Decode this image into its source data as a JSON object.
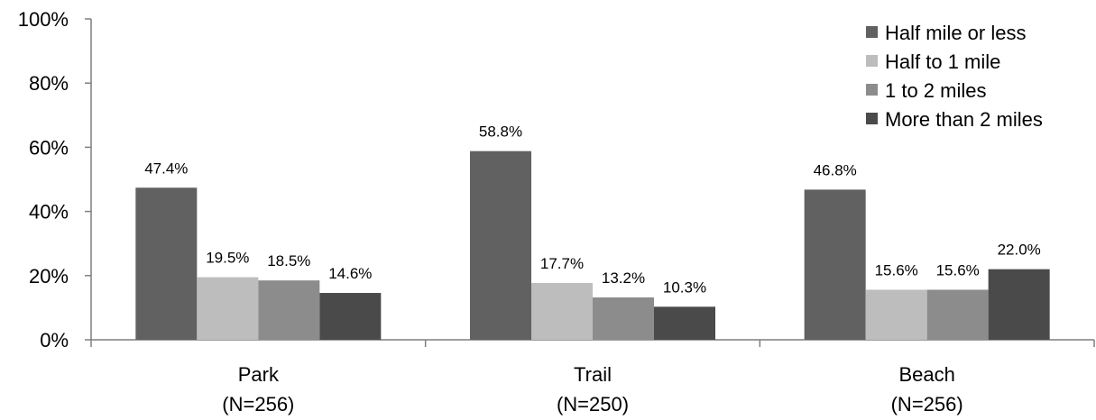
{
  "chart_data": {
    "type": "bar",
    "categories": [
      "Park\n(N=256)",
      "Trail\n(N=250)",
      "Beach\n(N=256)"
    ],
    "category_lines": [
      [
        "Park",
        "(N=256)"
      ],
      [
        "Trail",
        "(N=250)"
      ],
      [
        "Beach",
        "(N=256)"
      ]
    ],
    "series": [
      {
        "name": "Half mile or less",
        "values": [
          47.4,
          58.8,
          46.8
        ],
        "labels": [
          "47.4%",
          "58.8%",
          "46.8%"
        ],
        "color": "#616161"
      },
      {
        "name": "Half to 1 mile",
        "values": [
          19.5,
          17.7,
          15.6
        ],
        "labels": [
          "19.5%",
          "17.7%",
          "15.6%"
        ],
        "color": "#bdbdbd"
      },
      {
        "name": "1 to 2 miles",
        "values": [
          18.5,
          13.2,
          15.6
        ],
        "labels": [
          "18.5%",
          "13.2%",
          "15.6%"
        ],
        "color": "#8c8c8c"
      },
      {
        "name": "More than 2 miles",
        "values": [
          14.6,
          10.3,
          22.0
        ],
        "labels": [
          "14.6%",
          "10.3%",
          "22.0%"
        ],
        "color": "#4a4a4a"
      }
    ],
    "y_ticks": [
      "0%",
      "20%",
      "40%",
      "60%",
      "80%",
      "100%"
    ],
    "ylim": [
      0,
      100
    ],
    "title": "",
    "xlabel": "",
    "ylabel": "",
    "grid": false,
    "legend_position": "top-right"
  }
}
